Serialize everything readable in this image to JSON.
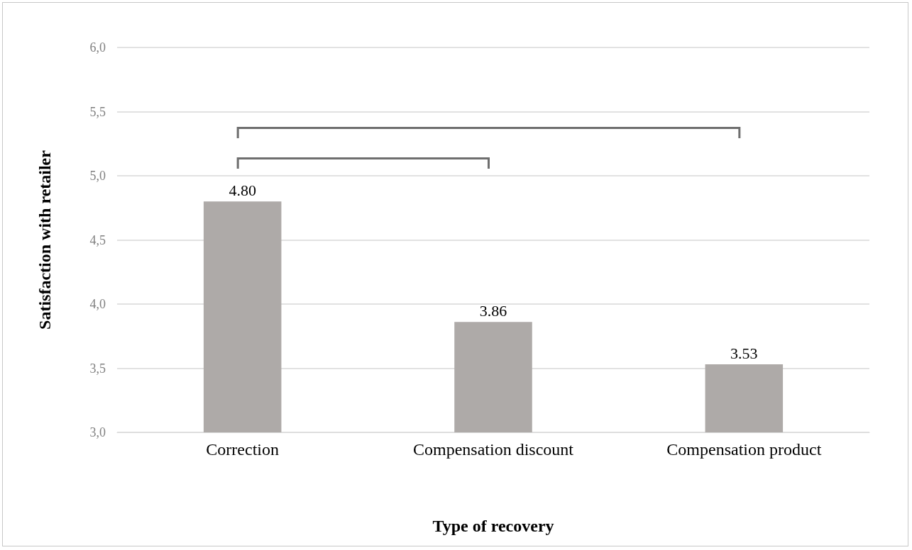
{
  "chart_data": {
    "type": "bar",
    "xlabel": "Type of recovery",
    "ylabel": "Satisfaction with retailer",
    "categories": [
      "Correction",
      "Compensation discount",
      "Compensation product"
    ],
    "values": [
      4.8,
      3.86,
      3.53
    ],
    "color": "#aeaaa8",
    "value_labels": [
      "4.80",
      "3.86",
      "3.53"
    ],
    "ylim": [
      3,
      6
    ],
    "yticks": [
      {
        "value": 3,
        "label": "3,0"
      },
      {
        "value": 3.5,
        "label": "3,5"
      },
      {
        "value": 4,
        "label": "4,0"
      },
      {
        "value": 4.5,
        "label": "4,5"
      },
      {
        "value": 5,
        "label": "5,0"
      },
      {
        "value": 5.5,
        "label": "5,5"
      },
      {
        "value": 6,
        "label": "6,0"
      }
    ],
    "grid": "y"
  }
}
